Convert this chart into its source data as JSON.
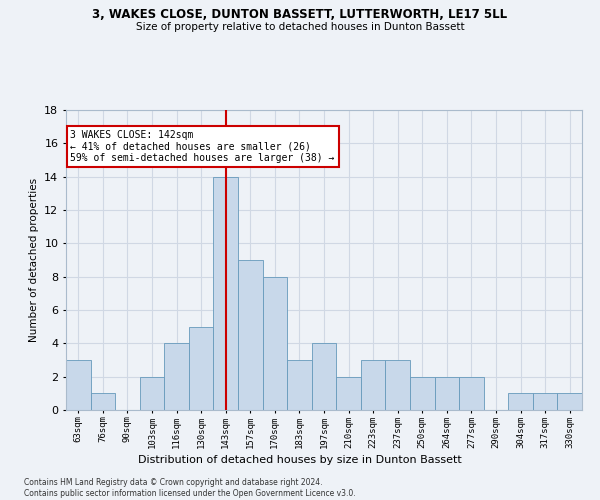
{
  "title1": "3, WAKES CLOSE, DUNTON BASSETT, LUTTERWORTH, LE17 5LL",
  "title2": "Size of property relative to detached houses in Dunton Bassett",
  "xlabel": "Distribution of detached houses by size in Dunton Bassett",
  "ylabel": "Number of detached properties",
  "bin_labels": [
    "63sqm",
    "76sqm",
    "90sqm",
    "103sqm",
    "116sqm",
    "130sqm",
    "143sqm",
    "157sqm",
    "170sqm",
    "183sqm",
    "197sqm",
    "210sqm",
    "223sqm",
    "237sqm",
    "250sqm",
    "264sqm",
    "277sqm",
    "290sqm",
    "304sqm",
    "317sqm",
    "330sqm"
  ],
  "bar_heights": [
    3,
    1,
    0,
    2,
    4,
    5,
    14,
    9,
    8,
    3,
    4,
    2,
    3,
    3,
    2,
    2,
    2,
    0,
    1,
    1,
    1
  ],
  "bar_color": "#c8d8ea",
  "bar_edge_color": "#6699bb",
  "vline_color": "#cc0000",
  "annotation_text": "3 WAKES CLOSE: 142sqm\n← 41% of detached houses are smaller (26)\n59% of semi-detached houses are larger (38) →",
  "annotation_box_color": "#ffffff",
  "annotation_box_edge": "#cc0000",
  "footnote": "Contains HM Land Registry data © Crown copyright and database right 2024.\nContains public sector information licensed under the Open Government Licence v3.0.",
  "ylim": [
    0,
    18
  ],
  "bg_color": "#eef2f7",
  "grid_color": "#d0d8e4"
}
